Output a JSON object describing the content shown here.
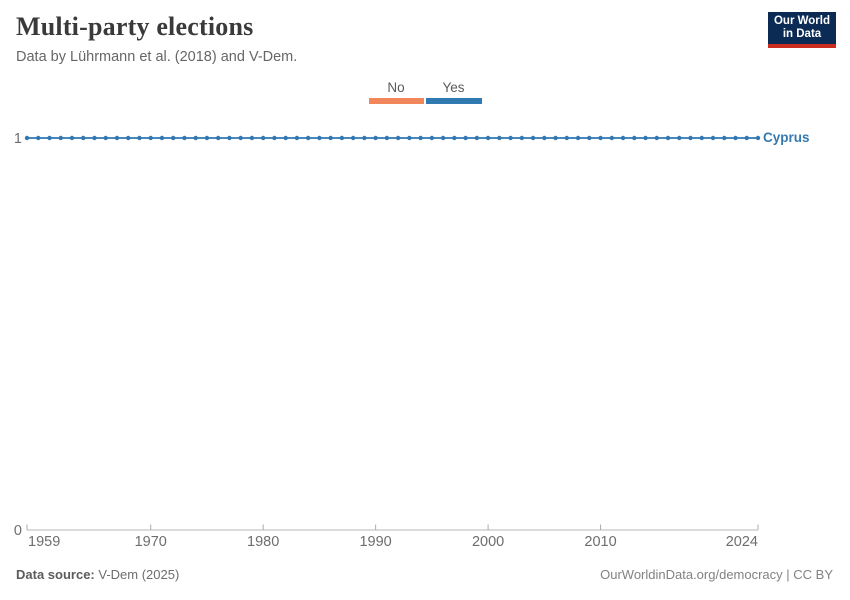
{
  "header": {
    "title": "Multi-party elections",
    "subtitle": "Data by Lührmann et al. (2018) and V-Dem.",
    "logo": {
      "line1": "Our World",
      "line2": "in Data",
      "bg_color": "#0b2b55",
      "accent_color": "#cb2d21",
      "text_color": "#ffffff"
    }
  },
  "legend": {
    "items": [
      {
        "label": "No",
        "color": "#f0865a"
      },
      {
        "label": "Yes",
        "color": "#3179b1"
      }
    ]
  },
  "chart_data": {
    "type": "line",
    "title": "Multi-party elections",
    "subtitle": "Data by Lührmann et al. (2018) and V-Dem.",
    "x_range": [
      1959,
      2024
    ],
    "ylim": [
      0,
      1
    ],
    "x_ticks": [
      1959,
      1970,
      1980,
      1990,
      2000,
      2010,
      2024
    ],
    "y_ticks": [
      0,
      1
    ],
    "grid": false,
    "legend_position": "top-center",
    "legend_entries": [
      "No",
      "Yes"
    ],
    "series": [
      {
        "name": "Cyprus",
        "label_color": "#3579b1",
        "line_color": "#4789bf",
        "dot_color": "#3377b2",
        "x": [
          1959,
          1960,
          1961,
          1962,
          1963,
          1964,
          1965,
          1966,
          1967,
          1968,
          1969,
          1970,
          1971,
          1972,
          1973,
          1974,
          1975,
          1976,
          1977,
          1978,
          1979,
          1980,
          1981,
          1982,
          1983,
          1984,
          1985,
          1986,
          1987,
          1988,
          1989,
          1990,
          1991,
          1992,
          1993,
          1994,
          1995,
          1996,
          1997,
          1998,
          1999,
          2000,
          2001,
          2002,
          2003,
          2004,
          2005,
          2006,
          2007,
          2008,
          2009,
          2010,
          2011,
          2012,
          2013,
          2014,
          2015,
          2016,
          2017,
          2018,
          2019,
          2020,
          2021,
          2022,
          2023,
          2024
        ],
        "values": [
          1,
          1,
          1,
          1,
          1,
          1,
          1,
          1,
          1,
          1,
          1,
          1,
          1,
          1,
          1,
          1,
          1,
          1,
          1,
          1,
          1,
          1,
          1,
          1,
          1,
          1,
          1,
          1,
          1,
          1,
          1,
          1,
          1,
          1,
          1,
          1,
          1,
          1,
          1,
          1,
          1,
          1,
          1,
          1,
          1,
          1,
          1,
          1,
          1,
          1,
          1,
          1,
          1,
          1,
          1,
          1,
          1,
          1,
          1,
          1,
          1,
          1,
          1,
          1,
          1,
          1
        ]
      }
    ],
    "axis_color": "#b7b7b7",
    "tick_color": "#ababab",
    "tick_label_color": "#6e6e6e"
  },
  "footer": {
    "source_label": "Data source:",
    "source_value": "V-Dem (2025)",
    "right_text": "OurWorldinData.org/democracy | CC BY"
  }
}
